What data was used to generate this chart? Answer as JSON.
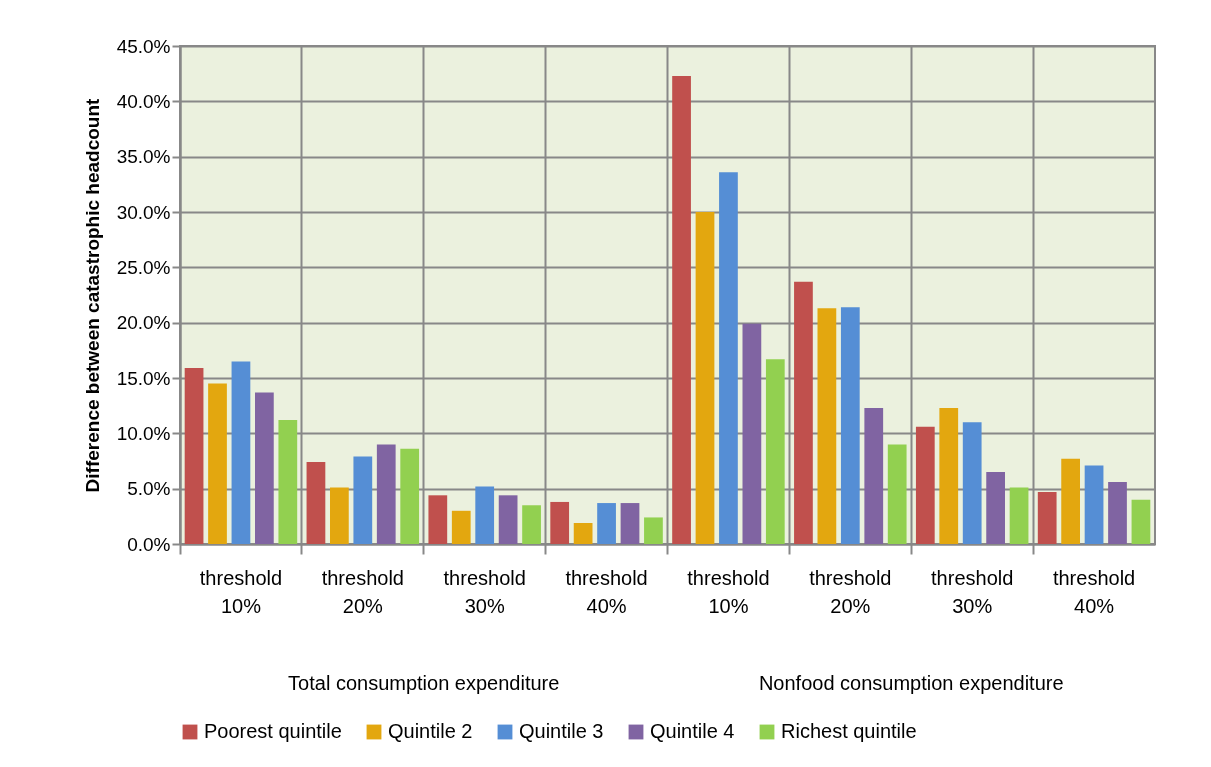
{
  "chart_data": {
    "type": "bar",
    "ylabel": "Difference between catastrophic headcount",
    "categories": [
      "threshold 10%",
      "threshold 20%",
      "threshold 30%",
      "threshold 40%",
      "threshold 10%",
      "threshold 20%",
      "threshold 30%",
      "threshold 40%"
    ],
    "series": [
      {
        "name": "Poorest quintile",
        "color": "#c0504d",
        "values": [
          15.9,
          7.4,
          4.4,
          3.8,
          42.3,
          23.7,
          10.6,
          4.7
        ]
      },
      {
        "name": "Quintile 2",
        "color": "#e3a70f",
        "values": [
          14.5,
          5.1,
          3.0,
          1.9,
          30.0,
          21.3,
          12.3,
          7.7
        ]
      },
      {
        "name": "Quintile 3",
        "color": "#558ed5",
        "values": [
          16.5,
          7.9,
          5.2,
          3.7,
          33.6,
          21.4,
          11.0,
          7.1
        ]
      },
      {
        "name": "Quintile 4",
        "color": "#8064a2",
        "values": [
          13.7,
          9.0,
          4.4,
          3.7,
          19.9,
          12.3,
          6.5,
          5.6
        ]
      },
      {
        "name": "Richest quintile",
        "color": "#92d050",
        "values": [
          11.2,
          8.6,
          3.5,
          2.4,
          16.7,
          9.0,
          5.1,
          4.0
        ]
      }
    ],
    "ylim": [
      0,
      45
    ],
    "yticks": [
      {
        "value": 0,
        "label": "0.0%"
      },
      {
        "value": 5,
        "label": "5.0%"
      },
      {
        "value": 10,
        "label": "10.0%"
      },
      {
        "value": 15,
        "label": "15.0%"
      },
      {
        "value": 20,
        "label": "20.0%"
      },
      {
        "value": 25,
        "label": "25.0%"
      },
      {
        "value": 30,
        "label": "30.0%"
      },
      {
        "value": 35,
        "label": "35.0%"
      },
      {
        "value": 40,
        "label": "40.0%"
      },
      {
        "value": 45,
        "label": "45.0%"
      }
    ],
    "annotations": [
      "Total consumption expenditure",
      "Nonfood consumption expenditure"
    ],
    "grid": true,
    "legend": "bottom"
  }
}
